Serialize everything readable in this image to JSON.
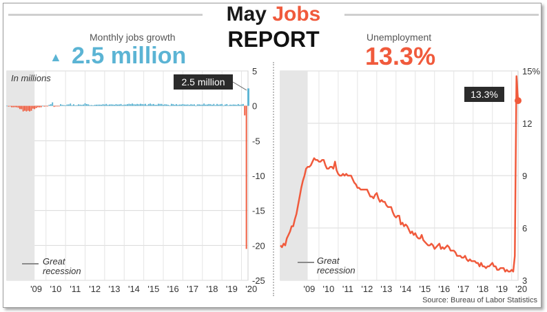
{
  "title": {
    "part1": "May ",
    "part2": "Jobs",
    "line2": "REPORT"
  },
  "colors": {
    "accent_blue": "#5bb4d4",
    "accent_red": "#f05a3c",
    "recession_shade": "#e6e6e6"
  },
  "source": "Source: Bureau of Labor Statistics",
  "chart_data": [
    {
      "type": "bar",
      "title": "Monthly jobs growth",
      "headline": "2.5 million",
      "headline_arrow": "▲",
      "unit_note": "In millions",
      "callout": "2.5 million",
      "legend": [
        "Great",
        "recession"
      ],
      "recession": [
        "2008-01",
        "2009-06"
      ],
      "ylim": [
        -25,
        5
      ],
      "y_ticks": [
        5,
        0,
        -5,
        -10,
        -15,
        -20,
        -25
      ],
      "y_tick_labels": [
        "5",
        "0",
        "-5",
        "-10",
        "-15",
        "-20",
        "-25"
      ],
      "x_tick_labels": [
        "'09",
        "'10",
        "'11",
        "'12",
        "'13",
        "'14",
        "'15",
        "'16",
        "'17",
        "'18",
        "'19",
        "'20"
      ],
      "x_tick_years": [
        2009,
        2010,
        2011,
        2012,
        2013,
        2014,
        2015,
        2016,
        2017,
        2018,
        2019,
        2020
      ],
      "x_range": [
        "2008-01",
        "2020-05"
      ],
      "series_monthly": {
        "2008": [
          0.02,
          -0.1,
          -0.05,
          -0.2,
          -0.2,
          -0.18,
          -0.2,
          -0.27,
          -0.46,
          -0.48,
          -0.8,
          -0.7
        ],
        "2009": [
          -0.8,
          -0.7,
          -0.8,
          -0.7,
          -0.4,
          -0.47,
          -0.33,
          -0.2,
          -0.22,
          -0.2,
          0.01,
          -0.11
        ],
        "2010": [
          -0.05,
          -0.05,
          0.16,
          0.25,
          0.5,
          -0.15,
          -0.07,
          -0.05,
          -0.05,
          0.24,
          0.14,
          0.11
        ],
        "2011": [
          0.06,
          0.2,
          0.21,
          0.33,
          0.1,
          0.23,
          0.07,
          0.1,
          0.22,
          0.18,
          0.14,
          0.2
        ],
        "2012": [
          0.36,
          0.26,
          0.22,
          0.1,
          0.11,
          0.08,
          0.15,
          0.17,
          0.18,
          0.18,
          0.16,
          0.24
        ],
        "2013": [
          0.19,
          0.28,
          0.14,
          0.2,
          0.22,
          0.2,
          0.15,
          0.25,
          0.19,
          0.21,
          0.27,
          0.11
        ],
        "2014": [
          0.19,
          0.19,
          0.24,
          0.3,
          0.25,
          0.33,
          0.24,
          0.21,
          0.28,
          0.23,
          0.3,
          0.26
        ],
        "2015": [
          0.23,
          0.29,
          0.11,
          0.27,
          0.33,
          0.22,
          0.27,
          0.15,
          0.16,
          0.3,
          0.28,
          0.28
        ],
        "2016": [
          0.15,
          0.24,
          0.21,
          0.15,
          0.04,
          0.29,
          0.25,
          0.16,
          0.25,
          0.14,
          0.2,
          0.19
        ],
        "2017": [
          0.26,
          0.2,
          0.18,
          0.21,
          0.14,
          0.24,
          0.19,
          0.22,
          0.02,
          0.22,
          0.22,
          0.18
        ],
        "2018": [
          0.18,
          0.33,
          0.18,
          0.2,
          0.27,
          0.24,
          0.15,
          0.28,
          0.11,
          0.28,
          0.18,
          0.23
        ],
        "2019": [
          0.27,
          0.03,
          0.19,
          0.26,
          0.08,
          0.18,
          0.16,
          0.2,
          0.18,
          0.15,
          0.26,
          0.15
        ],
        "2020": [
          0.21,
          0.27,
          -1.37,
          -20.5,
          2.5
        ]
      }
    },
    {
      "type": "line",
      "title": "Unemployment",
      "headline": "13.3%",
      "callout": "13.3%",
      "legend": [
        "Great",
        "recession"
      ],
      "recession": [
        "2008-01",
        "2009-06"
      ],
      "ylim": [
        3,
        15
      ],
      "y_ticks": [
        15,
        12,
        9,
        6,
        3
      ],
      "y_tick_labels": [
        "15%",
        "12",
        "9",
        "6",
        "3"
      ],
      "x_tick_labels": [
        "'09",
        "'10",
        "'11",
        "'12",
        "'13",
        "'14",
        "'15",
        "'16",
        "'17",
        "'18",
        "'19",
        "'20"
      ],
      "x_tick_years": [
        2009,
        2010,
        2011,
        2012,
        2013,
        2014,
        2015,
        2016,
        2017,
        2018,
        2019,
        2020
      ],
      "x_range": [
        "2008-01",
        "2020-05"
      ],
      "series_monthly": {
        "2008": [
          5.0,
          4.9,
          5.1,
          5.0,
          5.4,
          5.6,
          5.8,
          6.1,
          6.1,
          6.5,
          6.8,
          7.3
        ],
        "2009": [
          7.8,
          8.3,
          8.7,
          9.0,
          9.4,
          9.5,
          9.5,
          9.6,
          9.8,
          10.0,
          9.9,
          9.9
        ],
        "2010": [
          9.8,
          9.8,
          9.9,
          9.9,
          9.6,
          9.4,
          9.4,
          9.5,
          9.5,
          9.4,
          9.8,
          9.3
        ],
        "2011": [
          9.1,
          9.0,
          9.0,
          9.1,
          9.0,
          9.1,
          9.0,
          9.0,
          9.0,
          8.8,
          8.6,
          8.5
        ],
        "2012": [
          8.3,
          8.3,
          8.2,
          8.2,
          8.2,
          8.2,
          8.2,
          8.0,
          7.8,
          7.8,
          7.7,
          7.9
        ],
        "2013": [
          8.0,
          7.7,
          7.5,
          7.6,
          7.5,
          7.5,
          7.3,
          7.2,
          7.2,
          7.2,
          6.9,
          6.7
        ],
        "2014": [
          6.6,
          6.7,
          6.7,
          6.2,
          6.3,
          6.1,
          6.2,
          6.1,
          5.9,
          5.7,
          5.8,
          5.6
        ],
        "2015": [
          5.7,
          5.5,
          5.4,
          5.4,
          5.6,
          5.3,
          5.2,
          5.1,
          5.0,
          5.0,
          5.1,
          5.0
        ],
        "2016": [
          4.8,
          4.9,
          5.0,
          5.1,
          4.8,
          4.9,
          4.8,
          4.9,
          5.0,
          4.9,
          4.7,
          4.7
        ],
        "2017": [
          4.7,
          4.6,
          4.4,
          4.4,
          4.4,
          4.3,
          4.3,
          4.4,
          4.2,
          4.1,
          4.2,
          4.1
        ],
        "2018": [
          4.1,
          4.1,
          4.0,
          4.0,
          3.8,
          4.0,
          3.8,
          3.8,
          3.7,
          3.8,
          3.8,
          3.9
        ],
        "2019": [
          4.0,
          3.8,
          3.8,
          3.6,
          3.6,
          3.7,
          3.7,
          3.7,
          3.5,
          3.6,
          3.5,
          3.5
        ],
        "2020": [
          3.6,
          3.5,
          4.4,
          14.7,
          13.3
        ]
      }
    }
  ]
}
